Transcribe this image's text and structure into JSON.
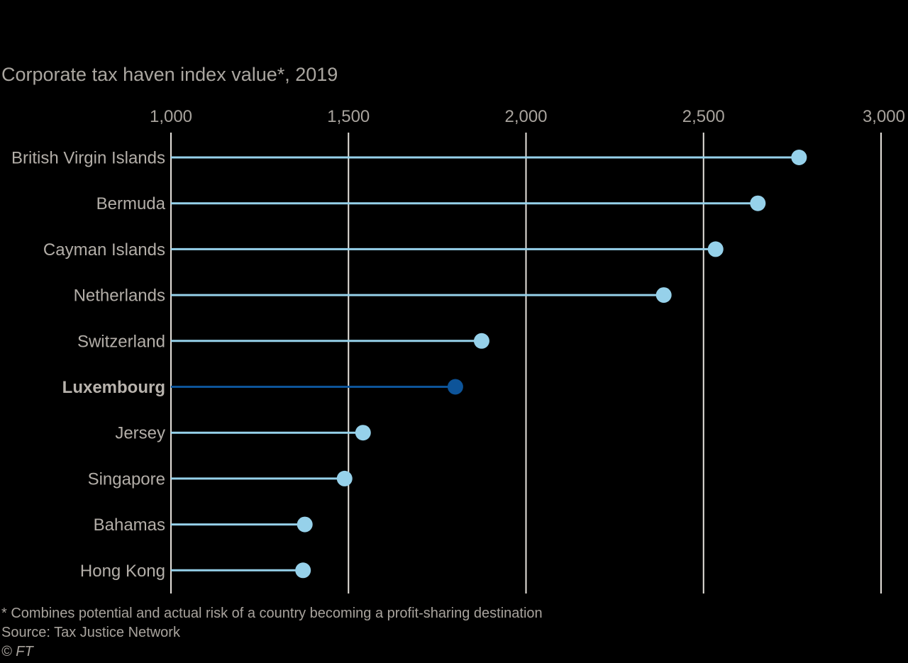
{
  "chart_data": {
    "type": "lollipop",
    "title": "Corporate tax haven index value*, 2019",
    "xlim": [
      1000,
      3000
    ],
    "ticks": [
      1000,
      1500,
      2000,
      2500,
      3000
    ],
    "tick_labels": [
      "1,000",
      "1,500",
      "2,000",
      "2,500",
      "3,000"
    ],
    "categories": [
      "British Virgin Islands",
      "Bermuda",
      "Cayman Islands",
      "Netherlands",
      "Switzerland",
      "Luxembourg",
      "Jersey",
      "Singapore",
      "Bahamas",
      "Hong Kong"
    ],
    "values": [
      2769,
      2653,
      2534,
      2388,
      1875,
      1801,
      1541,
      1489,
      1377,
      1372
    ],
    "highlight": "Luxembourg",
    "colors": {
      "default": "#96d1ea",
      "highlight": "#0d5499",
      "gridline": "#e6e2dc"
    },
    "grid": true
  },
  "footer": {
    "note": "* Combines potential and actual risk of a country becoming a profit-sharing destination",
    "source": "Source: Tax Justice Network",
    "copyright": "© FT"
  }
}
